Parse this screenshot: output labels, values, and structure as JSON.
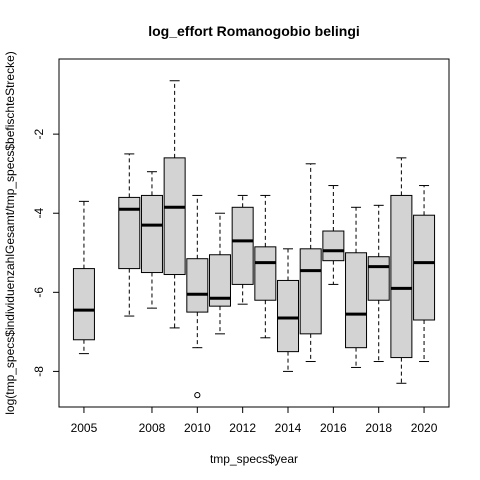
{
  "chart_data": {
    "type": "boxplot",
    "title": "log_effort Romanogobio belingi",
    "xlabel": "tmp_specs$year",
    "ylabel": "log(tmp_specs$individuenzahlGesamt/tmp_specs$befischteStrecke)",
    "ylim": [
      -8.9,
      -0.1
    ],
    "y_ticks": [
      -8,
      -6,
      -4,
      -2
    ],
    "x_tick_labels": [
      "2005",
      "2008",
      "2010",
      "2012",
      "2014",
      "2016",
      "2018",
      "2020"
    ],
    "box_fill": "#d3d3d3",
    "grid": false,
    "categories": [
      2005,
      2007,
      2008,
      2009,
      2010,
      2011,
      2012,
      2013,
      2014,
      2015,
      2016,
      2017,
      2018,
      2019,
      2020
    ],
    "boxes": [
      {
        "year": 2005,
        "whisker_low": -7.55,
        "q1": -7.2,
        "median": -6.45,
        "q3": -5.4,
        "whisker_high": -3.7,
        "outliers": []
      },
      {
        "year": 2007,
        "whisker_low": -6.6,
        "q1": -5.4,
        "median": -3.9,
        "q3": -3.6,
        "whisker_high": -2.5,
        "outliers": []
      },
      {
        "year": 2008,
        "whisker_low": -6.4,
        "q1": -5.5,
        "median": -4.3,
        "q3": -3.55,
        "whisker_high": -2.95,
        "outliers": []
      },
      {
        "year": 2009,
        "whisker_low": -6.9,
        "q1": -5.55,
        "median": -3.85,
        "q3": -2.6,
        "whisker_high": -0.65,
        "outliers": []
      },
      {
        "year": 2010,
        "whisker_low": -7.4,
        "q1": -6.5,
        "median": -6.05,
        "q3": -5.15,
        "whisker_high": -3.55,
        "outliers": [
          -8.6
        ]
      },
      {
        "year": 2011,
        "whisker_low": -7.05,
        "q1": -6.35,
        "median": -6.15,
        "q3": -5.05,
        "whisker_high": -4.0,
        "outliers": []
      },
      {
        "year": 2012,
        "whisker_low": -6.3,
        "q1": -5.8,
        "median": -4.7,
        "q3": -3.85,
        "whisker_high": -3.55,
        "outliers": []
      },
      {
        "year": 2013,
        "whisker_low": -7.15,
        "q1": -6.2,
        "median": -5.25,
        "q3": -4.85,
        "whisker_high": -3.55,
        "outliers": []
      },
      {
        "year": 2014,
        "whisker_low": -8.0,
        "q1": -7.5,
        "median": -6.65,
        "q3": -5.7,
        "whisker_high": -4.9,
        "outliers": []
      },
      {
        "year": 2015,
        "whisker_low": -7.75,
        "q1": -7.05,
        "median": -5.45,
        "q3": -4.9,
        "whisker_high": -2.75,
        "outliers": []
      },
      {
        "year": 2016,
        "whisker_low": -5.8,
        "q1": -5.2,
        "median": -4.95,
        "q3": -4.45,
        "whisker_high": -3.3,
        "outliers": []
      },
      {
        "year": 2017,
        "whisker_low": -7.9,
        "q1": -7.4,
        "median": -6.55,
        "q3": -5.0,
        "whisker_high": -3.85,
        "outliers": []
      },
      {
        "year": 2018,
        "whisker_low": -7.75,
        "q1": -6.2,
        "median": -5.35,
        "q3": -5.1,
        "whisker_high": -3.8,
        "outliers": []
      },
      {
        "year": 2019,
        "whisker_low": -8.3,
        "q1": -7.65,
        "median": -5.9,
        "q3": -3.55,
        "whisker_high": -2.6,
        "outliers": []
      },
      {
        "year": 2020,
        "whisker_low": -7.75,
        "q1": -6.7,
        "median": -5.25,
        "q3": -4.05,
        "whisker_high": -3.3,
        "outliers": []
      }
    ]
  }
}
